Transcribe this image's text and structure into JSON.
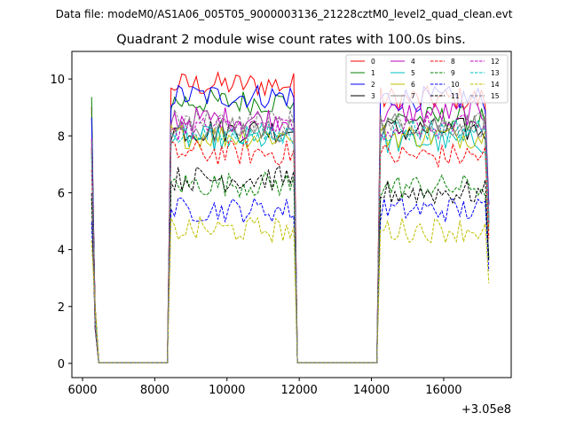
{
  "header": {
    "data_file": "Data file: modeM0/AS1A06_005T05_9000003136_21228cztM0_level2_quad_clean.evt"
  },
  "chart_data": {
    "type": "line",
    "title": "Quadrant 2 module wise count rates with 100.0s bins.",
    "xlabel": "",
    "ylabel": "",
    "x_offset_label": "+3.05e8",
    "xlim": [
      5705,
      17870
    ],
    "ylim": [
      -0.5,
      10.97
    ],
    "xticks": [
      6000,
      8000,
      10000,
      12000,
      14000,
      16000
    ],
    "xtick_labels": [
      "6000",
      "8000",
      "10000",
      "12000",
      "14000",
      "16000"
    ],
    "yticks": [
      0,
      2,
      4,
      6,
      8,
      10
    ],
    "ytick_labels": [
      "0",
      "2",
      "4",
      "6",
      "8",
      "10"
    ],
    "bin_size": 100,
    "x_start": 6250,
    "x_end": 17250,
    "active_segments": [
      [
        6250,
        6350
      ],
      [
        8400,
        11900
      ],
      [
        14200,
        17250
      ]
    ],
    "legend": {
      "placement": "top-right",
      "columns": 4
    },
    "series": [
      {
        "name": "0",
        "color": "#ff0000",
        "dash": false,
        "levels": [
          9.8,
          9.3
        ]
      },
      {
        "name": "1",
        "color": "#008000",
        "dash": false,
        "levels": [
          9.2,
          8.6
        ]
      },
      {
        "name": "2",
        "color": "#0000ff",
        "dash": false,
        "levels": [
          9.4,
          9.3
        ]
      },
      {
        "name": "3",
        "color": "#000000",
        "dash": false,
        "levels": [
          8.2,
          8.2
        ]
      },
      {
        "name": "4",
        "color": "#bf00bf",
        "dash": false,
        "levels": [
          8.6,
          8.8
        ]
      },
      {
        "name": "5",
        "color": "#00bfbf",
        "dash": false,
        "levels": [
          7.9,
          7.8
        ]
      },
      {
        "name": "6",
        "color": "#bfbf00",
        "dash": false,
        "levels": [
          8.0,
          8.0
        ]
      },
      {
        "name": "7",
        "color": "#808080",
        "dash": false,
        "levels": [
          8.2,
          8.4
        ]
      },
      {
        "name": "8",
        "color": "#ff0000",
        "dash": true,
        "levels": [
          7.4,
          7.3
        ]
      },
      {
        "name": "9",
        "color": "#008000",
        "dash": true,
        "levels": [
          6.3,
          6.2
        ]
      },
      {
        "name": "10",
        "color": "#0000ff",
        "dash": true,
        "levels": [
          5.4,
          5.4
        ]
      },
      {
        "name": "11",
        "color": "#000000",
        "dash": true,
        "levels": [
          6.5,
          6.0
        ]
      },
      {
        "name": "12",
        "color": "#bf00bf",
        "dash": true,
        "levels": [
          8.3,
          8.3
        ]
      },
      {
        "name": "13",
        "color": "#00bfbf",
        "dash": true,
        "levels": [
          8.0,
          8.2
        ]
      },
      {
        "name": "14",
        "color": "#bfbf00",
        "dash": true,
        "levels": [
          4.7,
          4.7
        ]
      },
      {
        "name": "15",
        "color": "#808080",
        "dash": true,
        "levels": [
          8.5,
          8.4
        ]
      }
    ]
  }
}
